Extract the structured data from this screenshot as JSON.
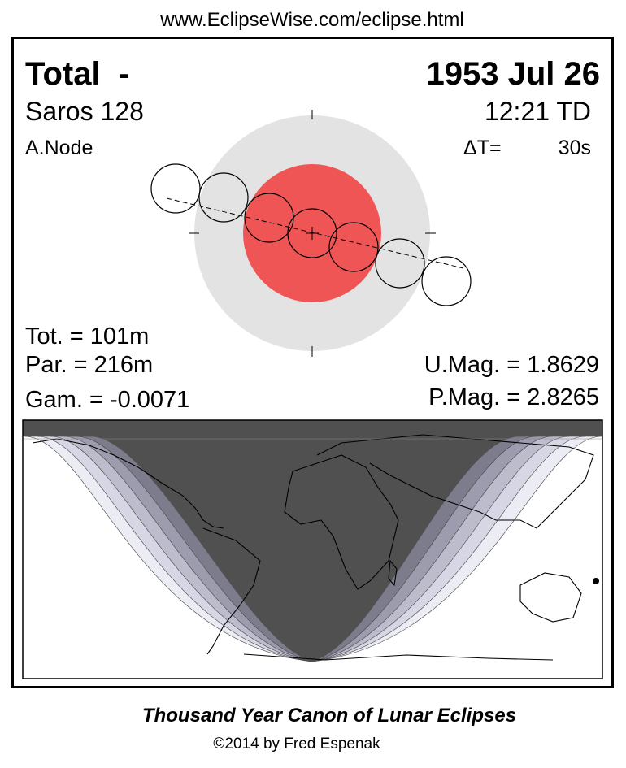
{
  "header": {
    "url": "www.EclipseWise.com/eclipse.html"
  },
  "eclipse": {
    "type": "Total  -",
    "date": "1953 Jul 26",
    "saros": "Saros 128",
    "time": "12:21 TD",
    "node": "A.Node",
    "delta_t_label": "ΔT=",
    "delta_t": "30s"
  },
  "stats": {
    "total": "Tot. = 101m",
    "partial": "Par. = 216m",
    "gamma": "Gam. = -0.0071",
    "umag": "U.Mag. = 1.8629",
    "pmag": "P.Mag. = 2.8265"
  },
  "footer": {
    "title": "Thousand Year Canon of Lunar Eclipses",
    "credit": "©2014 by Fred Espenak"
  }
}
